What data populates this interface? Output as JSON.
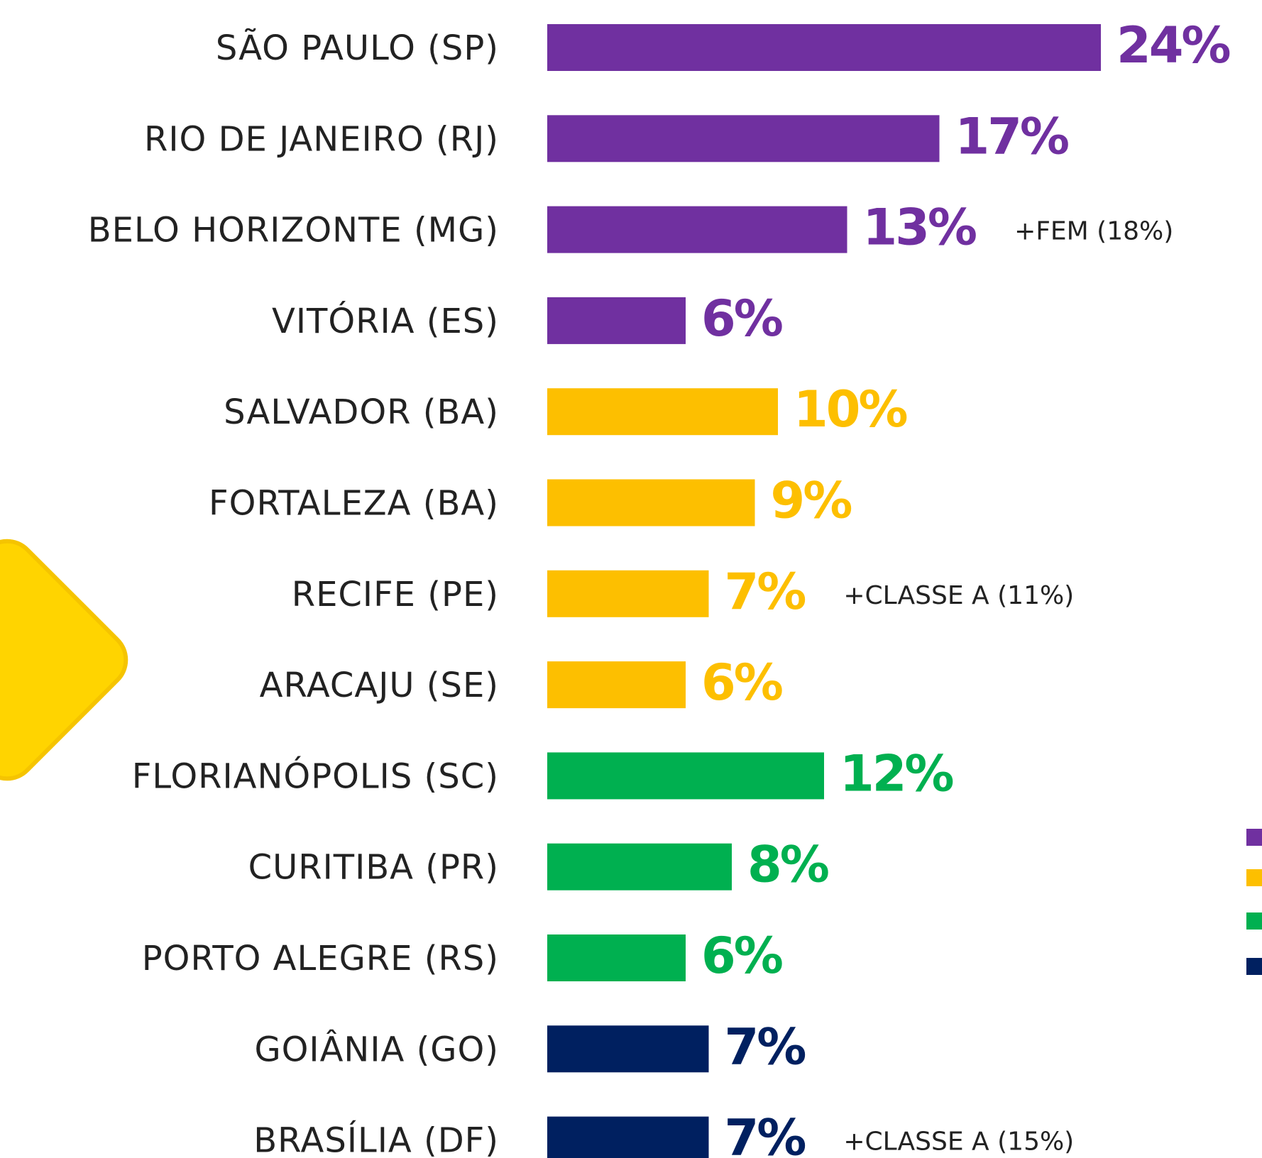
{
  "chart_data": {
    "type": "bar",
    "orientation": "horizontal",
    "categories": [
      "SÃO PAULO (SP)",
      "RIO DE JANEIRO (RJ)",
      "BELO HORIZONTE (MG)",
      "VITÓRIA (ES)",
      "SALVADOR (BA)",
      "FORTALEZA (BA)",
      "RECIFE (PE)",
      "ARACAJU (SE)",
      "FLORIANÓPOLIS (SC)",
      "CURITIBA (PR)",
      "PORTO ALEGRE (RS)",
      "GOIÂNIA (GO)",
      "BRASÍLIA (DF)"
    ],
    "values": [
      24,
      17,
      13,
      6,
      10,
      9,
      7,
      6,
      12,
      8,
      6,
      7,
      7
    ],
    "value_labels": [
      "24%",
      "17%",
      "13%",
      "6%",
      "10%",
      "9%",
      "7%",
      "6%",
      "12%",
      "8%",
      "6%",
      "7%",
      "7%"
    ],
    "colors": [
      "#7030a0",
      "#7030a0",
      "#7030a0",
      "#7030a0",
      "#fdbf00",
      "#fdbf00",
      "#fdbf00",
      "#fdbf00",
      "#00b050",
      "#00b050",
      "#00b050",
      "#002060",
      "#002060"
    ],
    "notes": [
      null,
      null,
      "+FEM (18%)",
      null,
      null,
      null,
      "+CLASSE A  (11%)",
      null,
      null,
      null,
      null,
      null,
      "+CLASSE A  (15%)"
    ],
    "xlim": [
      0,
      24
    ]
  }
}
